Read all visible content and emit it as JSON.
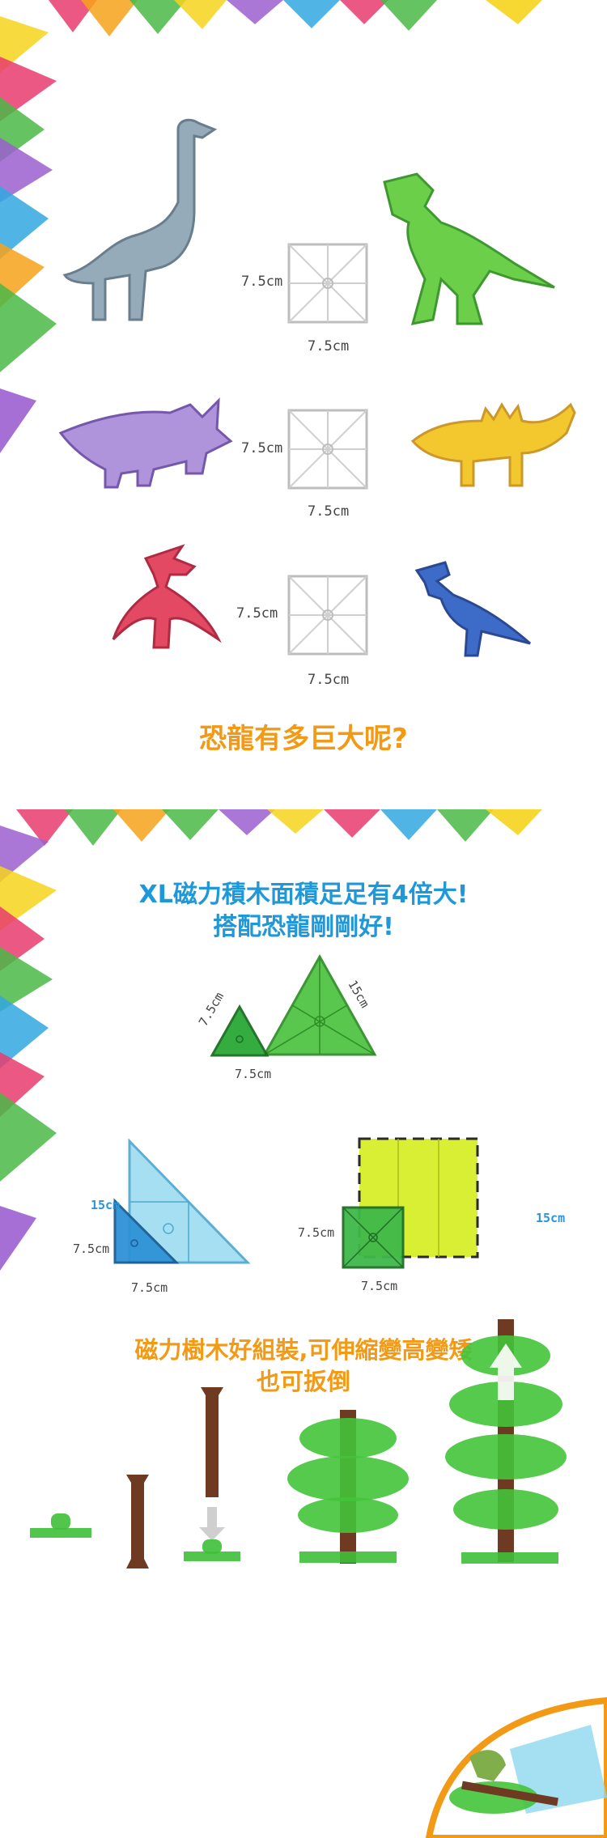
{
  "section1": {
    "headline": "恐龍有多巨大呢?",
    "rows": [
      {
        "height_label": "7.5cm",
        "width_label": "7.5cm"
      },
      {
        "height_label": "7.5cm",
        "width_label": "7.5cm"
      },
      {
        "height_label": "7.5cm",
        "width_label": "7.5cm"
      }
    ]
  },
  "section2": {
    "headline_line1": "XL磁力積木面積足足有4倍大!",
    "headline_line2": "搭配恐龍剛剛好!",
    "triangles": {
      "small_side": "7.5cm",
      "small_base": "7.5cm",
      "large_side": "15cm"
    },
    "right_triangles": {
      "large_side": "15cm",
      "small_side": "7.5cm",
      "small_base": "7.5cm"
    },
    "squares": {
      "large_side": "15cm",
      "small_side": "7.5cm",
      "small_base": "7.5cm"
    },
    "headline3_line1": "磁力樹木好組裝,可伸縮變高變矮",
    "headline3_line2": "也可扳倒"
  },
  "colors": {
    "orange": "#f29a16",
    "blue": "#1f98da",
    "green": "#3fbf3a",
    "lime": "#d9ef1c",
    "cyan": "#8fd8ef",
    "purple": "#9b5fd0",
    "brown": "#6e3a22"
  }
}
